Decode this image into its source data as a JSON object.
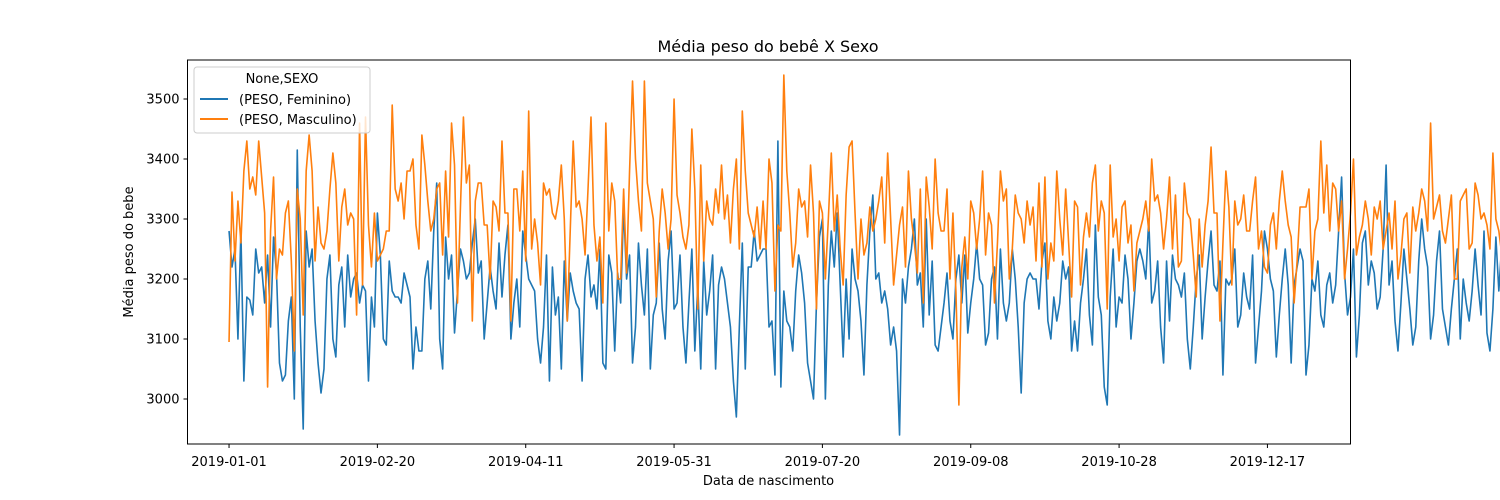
{
  "chart_data": {
    "type": "line",
    "title": "Média peso do bebê X Sexo",
    "xlabel": "Data de nascimento",
    "ylabel": "Média peso do bebe",
    "x_start": "2019-01-01",
    "x_end": "2019-12-31",
    "xlim": [
      "2018-12-18",
      "2020-01-14"
    ],
    "ylim": [
      2925,
      3565
    ],
    "x_ticks": [
      "2019-01-01",
      "2019-02-20",
      "2019-04-11",
      "2019-05-31",
      "2019-07-20",
      "2019-09-08",
      "2019-10-28",
      "2019-12-17"
    ],
    "y_ticks": [
      3000,
      3100,
      3200,
      3300,
      3400,
      3500
    ],
    "grid": false,
    "legend": {
      "title": "None,SEXO",
      "position": "top-left"
    },
    "series": [
      {
        "name": "(PESO, Feminino)",
        "color": "#1f77b4",
        "values": [
          3280,
          3220,
          3250,
          3100,
          3280,
          3030,
          3170,
          3165,
          3140,
          3250,
          3210,
          3220,
          3160,
          3240,
          3120,
          3270,
          3210,
          3060,
          3030,
          3040,
          3130,
          3170,
          3000,
          3415,
          3120,
          2950,
          3280,
          3220,
          3250,
          3130,
          3060,
          3010,
          3050,
          3200,
          3240,
          3100,
          3070,
          3190,
          3220,
          3120,
          3240,
          3170,
          3200,
          3210,
          3160,
          3190,
          3180,
          3030,
          3170,
          3120,
          3310,
          3240,
          3100,
          3090,
          3230,
          3180,
          3170,
          3170,
          3160,
          3210,
          3190,
          3170,
          3050,
          3120,
          3080,
          3080,
          3200,
          3230,
          3150,
          3280,
          3360,
          3100,
          3050,
          3270,
          3200,
          3240,
          3110,
          3180,
          3250,
          3230,
          3200,
          3210,
          3260,
          3300,
          3210,
          3230,
          3100,
          3160,
          3220,
          3180,
          3150,
          3260,
          3170,
          3240,
          3290,
          3100,
          3160,
          3200,
          3120,
          3280,
          3240,
          3200,
          3190,
          3180,
          3100,
          3060,
          3120,
          3240,
          3030,
          3220,
          3140,
          3170,
          3050,
          3230,
          3130,
          3210,
          3180,
          3160,
          3150,
          3030,
          3200,
          3240,
          3170,
          3190,
          3150,
          3250,
          3060,
          3050,
          3240,
          3210,
          3080,
          3210,
          3160,
          3320,
          3200,
          3240,
          3060,
          3120,
          3260,
          3190,
          3140,
          3250,
          3050,
          3140,
          3160,
          3260,
          3150,
          3100,
          3230,
          3280,
          3150,
          3160,
          3240,
          3120,
          3060,
          3160,
          3250,
          3080,
          3190,
          3050,
          3230,
          3140,
          3180,
          3240,
          3050,
          3190,
          3220,
          3200,
          3160,
          3120,
          3030,
          2970,
          3120,
          3260,
          3050,
          3220,
          3220,
          3280,
          3230,
          3240,
          3250,
          3250,
          3120,
          3130,
          3040,
          3430,
          3020,
          3180,
          3130,
          3120,
          3080,
          3180,
          3240,
          3210,
          3160,
          3060,
          3030,
          3000,
          3160,
          3270,
          3300,
          3000,
          3190,
          3280,
          3220,
          3310,
          3190,
          3070,
          3200,
          3100,
          3250,
          3200,
          3180,
          3130,
          3040,
          3190,
          3280,
          3340,
          3200,
          3210,
          3160,
          3180,
          3150,
          3090,
          3120,
          3080,
          2940,
          3200,
          3160,
          3220,
          3250,
          3300,
          3190,
          3210,
          3120,
          3300,
          3140,
          3230,
          3090,
          3080,
          3120,
          3160,
          3210,
          3130,
          3100,
          3200,
          3240,
          3160,
          3240,
          3110,
          3160,
          3200,
          3260,
          3200,
          3190,
          3090,
          3110,
          3200,
          3220,
          3100,
          3250,
          3160,
          3130,
          3160,
          3250,
          3200,
          3120,
          3010,
          3160,
          3200,
          3210,
          3200,
          3200,
          3150,
          3230,
          3260,
          3130,
          3100,
          3170,
          3130,
          3160,
          3230,
          3200,
          3220,
          3080,
          3130,
          3080,
          3160,
          3200,
          3250,
          3140,
          3090,
          3290,
          3170,
          3140,
          3020,
          2990,
          3170,
          3250,
          3120,
          3170,
          3160,
          3240,
          3200,
          3100,
          3160,
          3230,
          3250,
          3230,
          3200,
          3300,
          3160,
          3180,
          3230,
          3120,
          3060,
          3230,
          3130,
          3240,
          3200,
          3190,
          3170,
          3210,
          3100,
          3050,
          3120,
          3200,
          3240,
          3100,
          3170,
          3230,
          3280,
          3190,
          3180,
          3230,
          3040,
          3200,
          3190,
          3200,
          3250,
          3120,
          3140,
          3210,
          3170,
          3150,
          3240,
          3060,
          3120,
          3180,
          3280,
          3250,
          3200,
          3180,
          3070,
          3140,
          3200,
          3250,
          3190,
          3060,
          3190,
          3220,
          3250,
          3230,
          3040,
          3090,
          3200,
          3180,
          3230,
          3140,
          3120,
          3190,
          3210,
          3160,
          3190,
          3280,
          3370,
          3210,
          3140,
          3170,
          3250,
          3070,
          3140,
          3260,
          3280,
          3190,
          3230,
          3210,
          3150,
          3170,
          3250,
          3390,
          3190,
          3230,
          3130,
          3080,
          3160,
          3250,
          3200,
          3150,
          3090,
          3120,
          3230,
          3300,
          3250,
          3220,
          3100,
          3140,
          3230,
          3280,
          3150,
          3120,
          3090,
          3150,
          3200,
          3250,
          3100,
          3200,
          3160,
          3130,
          3180,
          3250,
          3190,
          3140,
          3280,
          3110,
          3080,
          3150,
          3270,
          3180,
          3260,
          3150,
          3100,
          3200,
          3270,
          3180,
          3010,
          3260,
          3350,
          3220,
          3090,
          3150,
          3200,
          3180,
          3230,
          3190,
          3270,
          3200,
          3220,
          3150,
          3140,
          3190,
          3230,
          3200,
          3170,
          3210,
          3160,
          3130,
          3290,
          3180,
          3170,
          3150,
          3140,
          3200,
          3220,
          3160,
          3210,
          3180,
          3160,
          3150,
          3200,
          3140,
          3280,
          3250,
          3200,
          3100,
          3180,
          3220,
          3300,
          3130,
          3200,
          3190,
          3150,
          3160,
          3210,
          3250,
          3230,
          3160,
          3120,
          3040,
          3150,
          3230,
          3290,
          3180,
          3200,
          3250,
          3180,
          3140,
          3200,
          3090,
          3160,
          3250,
          3140,
          3210,
          3230,
          3060,
          3200,
          3230,
          3270,
          3280,
          3200,
          3050,
          3110,
          3180,
          3260,
          3200,
          3240,
          3180,
          3160,
          3180,
          3050,
          3140,
          3260,
          3230,
          3120,
          3190,
          3180,
          3090,
          3130,
          3230,
          3260,
          3140,
          2980,
          3100,
          3190,
          3250,
          3150,
          3060,
          3130,
          3220,
          3170,
          3120,
          3040,
          3230,
          3140,
          3180,
          3260,
          3300,
          3150,
          3160,
          3170,
          3250,
          3150,
          3210,
          3180,
          3190,
          3220,
          3210,
          3150,
          3140,
          3220,
          3200,
          3250,
          3170,
          3230
        ]
      },
      {
        "name": "(PESO, Masculino)",
        "color": "#ff7f0e",
        "values": [
          3095,
          3345,
          3230,
          3330,
          3260,
          3380,
          3430,
          3350,
          3370,
          3340,
          3430,
          3370,
          3310,
          3020,
          3280,
          3370,
          3200,
          3250,
          3240,
          3310,
          3330,
          3230,
          3080,
          3350,
          3300,
          3140,
          3380,
          3440,
          3380,
          3230,
          3320,
          3260,
          3250,
          3280,
          3350,
          3410,
          3360,
          3230,
          3320,
          3350,
          3290,
          3310,
          3300,
          3140,
          3460,
          3190,
          3470,
          3290,
          3220,
          3310,
          3230,
          3240,
          3250,
          3280,
          3280,
          3490,
          3350,
          3330,
          3360,
          3300,
          3380,
          3380,
          3400,
          3290,
          3250,
          3440,
          3390,
          3330,
          3280,
          3300,
          3350,
          3360,
          3240,
          3380,
          3270,
          3460,
          3390,
          3160,
          3320,
          3470,
          3360,
          3390,
          3130,
          3330,
          3360,
          3360,
          3290,
          3290,
          3200,
          3330,
          3320,
          3280,
          3430,
          3310,
          3310,
          3130,
          3350,
          3350,
          3280,
          3380,
          3230,
          3480,
          3250,
          3300,
          3260,
          3190,
          3360,
          3340,
          3350,
          3310,
          3300,
          3330,
          3390,
          3300,
          3130,
          3280,
          3430,
          3320,
          3330,
          3300,
          3240,
          3350,
          3470,
          3290,
          3230,
          3270,
          3160,
          3460,
          3280,
          3360,
          3330,
          3200,
          3200,
          3350,
          3210,
          3380,
          3530,
          3400,
          3330,
          3280,
          3530,
          3360,
          3330,
          3300,
          3170,
          3280,
          3350,
          3310,
          3250,
          3300,
          3500,
          3340,
          3310,
          3270,
          3250,
          3290,
          3450,
          3350,
          3150,
          3390,
          3230,
          3330,
          3300,
          3290,
          3350,
          3310,
          3390,
          3300,
          3340,
          3260,
          3350,
          3400,
          3250,
          3480,
          3380,
          3310,
          3290,
          3270,
          3320,
          3250,
          3330,
          3250,
          3400,
          3360,
          3180,
          3290,
          3280,
          3540,
          3380,
          3310,
          3220,
          3260,
          3350,
          3320,
          3330,
          3270,
          3390,
          3310,
          3150,
          3330,
          3310,
          3200,
          3300,
          3410,
          3280,
          3340,
          3250,
          3190,
          3340,
          3420,
          3430,
          3310,
          3200,
          3300,
          3240,
          3260,
          3320,
          3280,
          3300,
          3330,
          3370,
          3260,
          3410,
          3300,
          3190,
          3240,
          3290,
          3320,
          3220,
          3380,
          3300,
          3260,
          3210,
          3350,
          3160,
          3370,
          3320,
          3250,
          3400,
          3310,
          3280,
          3280,
          3350,
          3200,
          3310,
          3180,
          2990,
          3220,
          3270,
          3200,
          3330,
          3310,
          3250,
          3300,
          3380,
          3240,
          3310,
          3290,
          3160,
          3260,
          3380,
          3330,
          3350,
          3200,
          3250,
          3340,
          3310,
          3300,
          3260,
          3330,
          3290,
          3320,
          3230,
          3360,
          3220,
          3370,
          3200,
          3260,
          3230,
          3380,
          3300,
          3240,
          3350,
          3260,
          3170,
          3330,
          3320,
          3190,
          3270,
          3310,
          3270,
          3360,
          3390,
          3280,
          3330,
          3310,
          3150,
          3390,
          3270,
          3300,
          3230,
          3320,
          3330,
          3260,
          3290,
          3180,
          3260,
          3280,
          3300,
          3330,
          3280,
          3400,
          3330,
          3340,
          3310,
          3250,
          3300,
          3370,
          3250,
          3340,
          3220,
          3230,
          3360,
          3310,
          3300,
          3240,
          3170,
          3300,
          3220,
          3290,
          3330,
          3420,
          3310,
          3310,
          3130,
          3260,
          3380,
          3320,
          3190,
          3330,
          3290,
          3300,
          3340,
          3280,
          3280,
          3330,
          3370,
          3250,
          3280,
          3220,
          3210,
          3290,
          3310,
          3250,
          3330,
          3380,
          3330,
          3290,
          3270,
          3160,
          3230,
          3320,
          3320,
          3320,
          3350,
          3200,
          3280,
          3300,
          3430,
          3310,
          3390,
          3280,
          3360,
          3350,
          3280,
          3330,
          3200,
          3250,
          3310,
          3400,
          3240,
          3270,
          3290,
          3330,
          3300,
          3240,
          3320,
          3300,
          3330,
          3250,
          3280,
          3310,
          3250,
          3330,
          3200,
          3240,
          3300,
          3310,
          3210,
          3320,
          3280,
          3310,
          3350,
          3330,
          3280,
          3460,
          3300,
          3320,
          3340,
          3280,
          3260,
          3300,
          3340,
          3200,
          3200,
          3330,
          3340,
          3350,
          3250,
          3260,
          3360,
          3340,
          3300,
          3310,
          3290,
          3250,
          3410,
          3300,
          3280,
          3240,
          3290,
          3250,
          3330,
          3360,
          3280,
          3350,
          3240,
          3300,
          3280,
          3200,
          3320,
          3310,
          3300,
          3220,
          3300,
          3290,
          3320,
          3390,
          3320,
          3310,
          3260,
          3330,
          3290,
          3290,
          3250,
          3210,
          3330,
          3310,
          3330,
          3270,
          3500,
          3490,
          3400,
          3290,
          3230,
          3300,
          3280,
          3340,
          3300,
          3210,
          3300,
          3330,
          3360,
          3280,
          3290,
          3310,
          3330,
          3250,
          3220,
          3310,
          3340,
          3310,
          3300,
          3270,
          3370,
          3380,
          3300,
          3480,
          3320,
          3290,
          3300,
          3350,
          3260,
          3300,
          3320,
          3340,
          3280,
          3290,
          3230,
          3380,
          3310,
          3310,
          3250,
          3330,
          3280,
          3290,
          3420,
          3300,
          3320,
          3350,
          3260,
          3300,
          3310,
          3240,
          3300,
          3330,
          3380,
          3320,
          3290,
          3250,
          3310,
          3290,
          3300,
          3340,
          3300,
          3230,
          3290,
          3310,
          3250,
          3360,
          3310,
          3380,
          3250,
          3320,
          3280,
          3300,
          3110,
          3380,
          3340,
          3350,
          3300,
          3250,
          3290,
          3330,
          3310,
          3230,
          3300,
          3260,
          3310,
          3200,
          3320,
          3340,
          3020,
          3490,
          3160,
          3290,
          3300,
          3240,
          3120,
          3280,
          3380
        ]
      }
    ]
  }
}
